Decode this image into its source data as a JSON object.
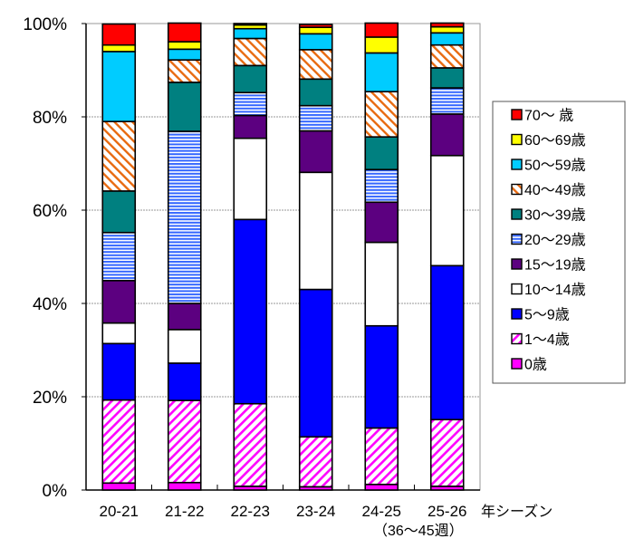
{
  "chart_data": {
    "type": "bar",
    "stacked": true,
    "normalized_percent": true,
    "title": "",
    "xlabel": "年シーズン",
    "xlabel_sub": "（36～45週）",
    "ylabel": "",
    "ylim": [
      0,
      100
    ],
    "yticks": [
      "0%",
      "20%",
      "40%",
      "60%",
      "80%",
      "100%"
    ],
    "grid": {
      "y": true,
      "style": "dotted"
    },
    "legend_position": "right",
    "categories": [
      "20-21",
      "21-22",
      "22-23",
      "23-24",
      "24-25",
      "25-26"
    ],
    "series": [
      {
        "name": "0歳",
        "color": "#ff00ff",
        "pattern": "solid",
        "values": [
          1.5,
          1.6,
          0.8,
          0.7,
          1.2,
          0.8
        ]
      },
      {
        "name": "1～4歳",
        "color": "#ff00ff",
        "pattern": "diag-down",
        "values": [
          17.8,
          17.6,
          17.7,
          10.7,
          12.1,
          14.3
        ]
      },
      {
        "name": "5～9歳",
        "color": "#0000ff",
        "pattern": "solid",
        "values": [
          12.1,
          8.0,
          39.5,
          31.6,
          21.9,
          33.0
        ]
      },
      {
        "name": "10～14歳",
        "color": "#ffffff",
        "pattern": "solid",
        "values": [
          4.4,
          7.2,
          17.4,
          25.1,
          17.9,
          23.6
        ]
      },
      {
        "name": "15～19歳",
        "color": "#5c0080",
        "pattern": "solid",
        "values": [
          9.1,
          5.6,
          4.9,
          8.9,
          8.6,
          8.9
        ]
      },
      {
        "name": "20～29歳",
        "color": "#3366ff",
        "pattern": "horizontal",
        "values": [
          10.3,
          36.9,
          4.9,
          5.4,
          7.0,
          5.6
        ]
      },
      {
        "name": "30～39歳",
        "color": "#008080",
        "pattern": "solid",
        "values": [
          8.9,
          10.5,
          5.8,
          5.7,
          7.0,
          4.3
        ]
      },
      {
        "name": "40～49歳",
        "color": "#e86a10",
        "pattern": "diag-up",
        "values": [
          14.9,
          4.8,
          5.8,
          6.3,
          9.7,
          4.9
        ]
      },
      {
        "name": "50～59歳",
        "color": "#00ccff",
        "pattern": "solid",
        "values": [
          15.0,
          2.3,
          2.1,
          3.4,
          8.3,
          2.6
        ]
      },
      {
        "name": "60～69歳",
        "color": "#ffff00",
        "pattern": "solid",
        "values": [
          1.4,
          1.6,
          0.8,
          1.4,
          3.4,
          1.3
        ]
      },
      {
        "name": "70～ 歳",
        "color": "#ff0000",
        "pattern": "solid",
        "values": [
          4.5,
          4.0,
          0.3,
          0.6,
          3.0,
          0.8
        ]
      }
    ]
  },
  "legend": {
    "order_top_to_bottom": [
      "70～ 歳",
      "60～69歳",
      "50～59歳",
      "40～49歳",
      "30～39歳",
      "20～29歳",
      "15～19歳",
      "10～14歳",
      "5～9歳",
      "1～4歳",
      "0歳"
    ]
  }
}
